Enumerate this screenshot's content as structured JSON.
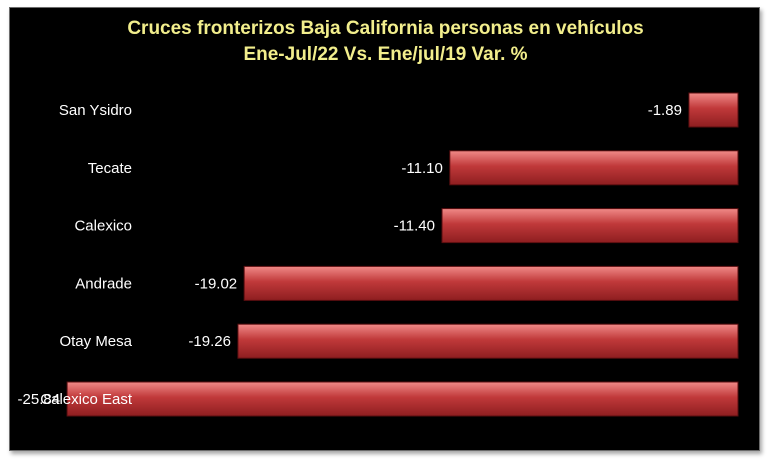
{
  "chart_data": {
    "type": "bar",
    "orientation": "horizontal",
    "title": "Cruces fronterizos Baja California personas  en vehículos",
    "subtitle": "Ene-Jul/22 Vs. Ene/jul/19 Var. %",
    "categories": [
      "San Ysidro",
      "Tecate",
      "Calexico",
      "Andrade",
      "Otay Mesa",
      "Calexico East"
    ],
    "values": [
      -1.89,
      -11.1,
      -11.4,
      -19.02,
      -19.26,
      -25.84
    ],
    "data_labels": [
      "-1.89",
      "-11.10",
      "-11.40",
      "-19.02",
      "-19.26",
      "-25.84"
    ],
    "xlim": [
      -27.5,
      0
    ],
    "grid": false,
    "legend": "none",
    "colors": {
      "bar": "#c0393a",
      "bar_light": "#f08a88",
      "bar_dark": "#8e1e20",
      "background": "#000000",
      "title": "#f2ee8c",
      "text": "#ffffff"
    }
  }
}
